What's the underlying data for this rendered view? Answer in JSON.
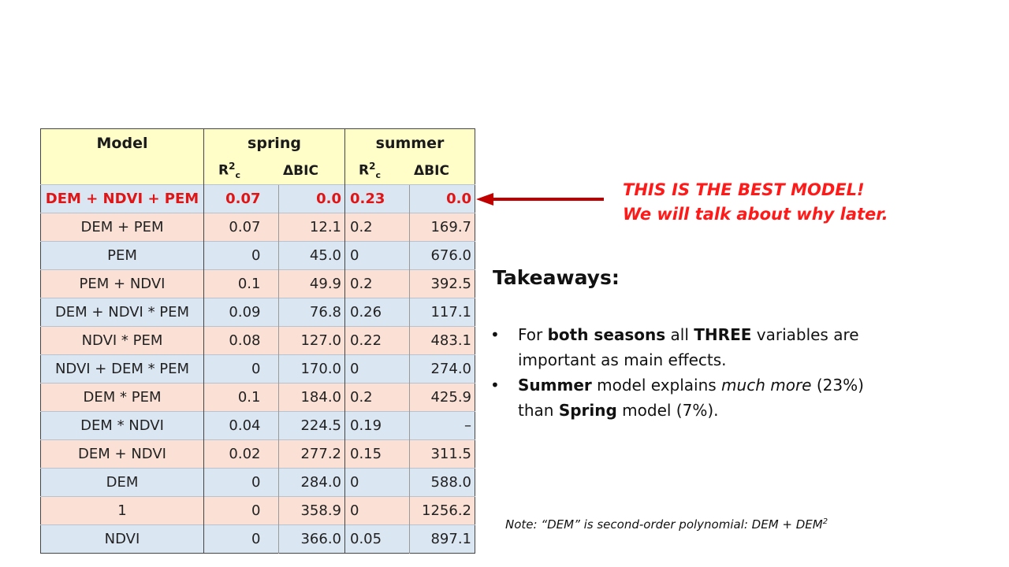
{
  "table": {
    "header_model": "Model",
    "header_spring": "spring",
    "header_summer": "summer",
    "r2_main": "R",
    "r2_sup": "2",
    "r2_sub": "c",
    "bic_label": "ΔBIC",
    "rows": [
      {
        "model": "DEM + NDVI + PEM",
        "spring_r2": "0.07",
        "spring_bic": "0.0",
        "summer_r2": "0.23",
        "summer_bic": "0.0"
      },
      {
        "model": "DEM + PEM",
        "spring_r2": "0.07",
        "spring_bic": "12.1",
        "summer_r2": "0.2",
        "summer_bic": "169.7"
      },
      {
        "model": "PEM",
        "spring_r2": "0",
        "spring_bic": "45.0",
        "summer_r2": "0",
        "summer_bic": "676.0"
      },
      {
        "model": "PEM + NDVI",
        "spring_r2": "0.1",
        "spring_bic": "49.9",
        "summer_r2": "0.2",
        "summer_bic": "392.5"
      },
      {
        "model": "DEM + NDVI * PEM",
        "spring_r2": "0.09",
        "spring_bic": "76.8",
        "summer_r2": "0.26",
        "summer_bic": "117.1"
      },
      {
        "model": "NDVI * PEM",
        "spring_r2": "0.08",
        "spring_bic": "127.0",
        "summer_r2": "0.22",
        "summer_bic": "483.1"
      },
      {
        "model": "NDVI + DEM * PEM",
        "spring_r2": "0",
        "spring_bic": "170.0",
        "summer_r2": "0",
        "summer_bic": "274.0"
      },
      {
        "model": "DEM * PEM",
        "spring_r2": "0.1",
        "spring_bic": "184.0",
        "summer_r2": "0.2",
        "summer_bic": "425.9"
      },
      {
        "model": "DEM * NDVI",
        "spring_r2": "0.04",
        "spring_bic": "224.5",
        "summer_r2": "0.19",
        "summer_bic": "–"
      },
      {
        "model": "DEM + NDVI",
        "spring_r2": "0.02",
        "spring_bic": "277.2",
        "summer_r2": "0.15",
        "summer_bic": "311.5"
      },
      {
        "model": "DEM",
        "spring_r2": "0",
        "spring_bic": "284.0",
        "summer_r2": "0",
        "summer_bic": "588.0"
      },
      {
        "model": "1",
        "spring_r2": "0",
        "spring_bic": "358.9",
        "summer_r2": "0",
        "summer_bic": "1256.2"
      },
      {
        "model": "NDVI",
        "spring_r2": "0",
        "spring_bic": "366.0",
        "summer_r2": "0.05",
        "summer_bic": "897.1"
      }
    ]
  },
  "best_note": {
    "line1": "THIS IS THE BEST MODEL!",
    "line2": "We will talk about why later."
  },
  "takeaways": {
    "title": "Takeaways:",
    "bullet": "•",
    "p1_a": "For ",
    "p1_b": "both seasons",
    "p1_c": " all ",
    "p1_d": "THREE",
    "p1_e": " variables are important as main effects.",
    "p2_a": "Summer",
    "p2_b": " model explains ",
    "p2_c": "much more",
    "p2_d": " (23%) than ",
    "p2_e": "Spring",
    "p2_f": " model (7%)."
  },
  "footnote": {
    "text": "Note: “DEM” is second-order polynomial: DEM + DEM",
    "sup": "2"
  },
  "colors": {
    "header_bg": "#fffdc8",
    "row_blue": "#dbe6f3",
    "row_peach": "#fbe1d5",
    "best_red": "#e01515",
    "arrow": "#c00000"
  }
}
